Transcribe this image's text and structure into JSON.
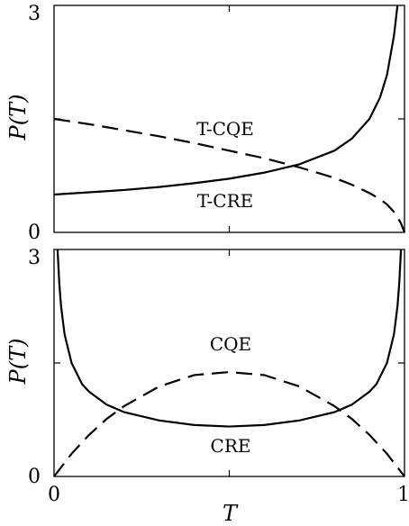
{
  "chart_data": [
    {
      "type": "line",
      "ylabel": "P(T)",
      "xlim": [
        0,
        1
      ],
      "ylim": [
        0,
        3
      ],
      "yticks": [
        "0",
        "3"
      ],
      "series": [
        {
          "name": "T-CRE",
          "style": "solid",
          "x": [
            0,
            0.1,
            0.2,
            0.3,
            0.4,
            0.5,
            0.6,
            0.7,
            0.8,
            0.85,
            0.9,
            0.93,
            0.95,
            0.97,
            0.98
          ],
          "y": [
            0.5,
            0.53,
            0.56,
            0.6,
            0.65,
            0.71,
            0.79,
            0.9,
            1.08,
            1.24,
            1.5,
            1.78,
            2.08,
            2.6,
            3.0
          ]
        },
        {
          "name": "T-CQE",
          "style": "dashed",
          "x": [
            0,
            0.1,
            0.2,
            0.3,
            0.4,
            0.5,
            0.6,
            0.7,
            0.8,
            0.85,
            0.9,
            0.93,
            0.95,
            0.97,
            0.98,
            0.99,
            1.0
          ],
          "y": [
            1.5,
            1.43,
            1.35,
            1.27,
            1.18,
            1.08,
            0.98,
            0.86,
            0.72,
            0.63,
            0.52,
            0.44,
            0.37,
            0.27,
            0.2,
            0.12,
            0.0
          ]
        }
      ]
    },
    {
      "type": "line",
      "xlabel": "T",
      "ylabel": "P(T)",
      "xlim": [
        0,
        1
      ],
      "ylim": [
        0,
        3
      ],
      "xticks": [
        "0",
        "1"
      ],
      "yticks": [
        "0",
        "3"
      ],
      "series": [
        {
          "name": "CRE",
          "style": "solid",
          "x": [
            0.01,
            0.015,
            0.02,
            0.03,
            0.05,
            0.08,
            0.1,
            0.15,
            0.2,
            0.3,
            0.4,
            0.5,
            0.6,
            0.7,
            0.8,
            0.85,
            0.9,
            0.92,
            0.95,
            0.97,
            0.98,
            0.985,
            0.99
          ],
          "y": [
            3.0,
            2.55,
            2.25,
            1.88,
            1.5,
            1.22,
            1.12,
            0.95,
            0.85,
            0.74,
            0.68,
            0.66,
            0.68,
            0.74,
            0.85,
            0.95,
            1.12,
            1.22,
            1.5,
            1.88,
            2.25,
            2.55,
            3.0
          ]
        },
        {
          "name": "CQE",
          "style": "dashed",
          "x": [
            0,
            0.05,
            0.1,
            0.15,
            0.2,
            0.3,
            0.4,
            0.5,
            0.6,
            0.7,
            0.8,
            0.85,
            0.9,
            0.95,
            1.0
          ],
          "y": [
            0.0,
            0.3,
            0.55,
            0.76,
            0.93,
            1.19,
            1.34,
            1.38,
            1.34,
            1.19,
            0.93,
            0.76,
            0.55,
            0.3,
            0.0
          ]
        }
      ]
    }
  ]
}
